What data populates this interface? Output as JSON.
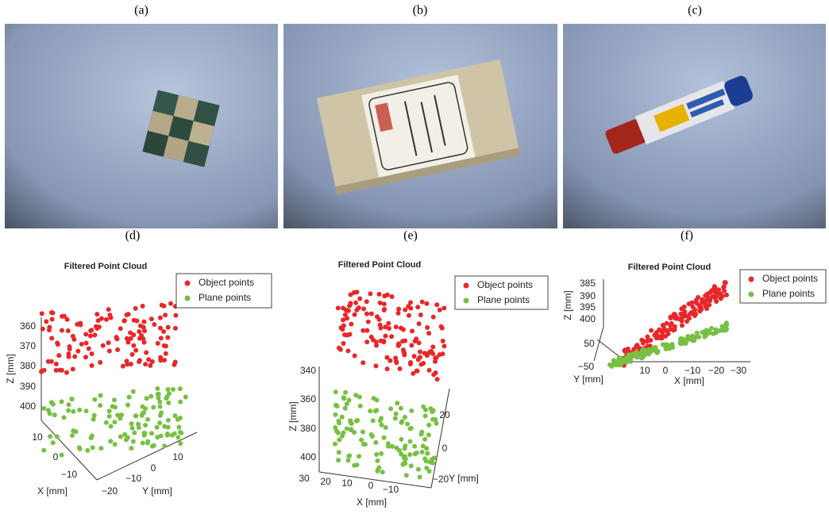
{
  "panels": [
    {
      "label": "(a)"
    },
    {
      "label": "(b)"
    },
    {
      "label": "(c)"
    },
    {
      "label": "(d)",
      "plot": {
        "title": "Filtered Point Cloud",
        "legend": [
          "Object points",
          "Plane points"
        ],
        "z_label": "Z [mm]",
        "z_ticks": [
          "360",
          "370",
          "380",
          "390",
          "400"
        ],
        "x_label": "X [mm]",
        "x_ticks": [
          "10",
          "0",
          "−10"
        ],
        "y_label": "Y [mm]",
        "y_ticks": [
          "10",
          "0",
          "−10",
          "−20"
        ]
      }
    },
    {
      "label": "(e)",
      "plot": {
        "title": "Filtered Point Cloud",
        "legend": [
          "Object points",
          "Plane points"
        ],
        "z_label": "Z [mm]",
        "z_ticks": [
          "340",
          "360",
          "380",
          "400"
        ],
        "x_label": "X [mm]",
        "x_ticks": [
          "30",
          "20",
          "10",
          "0",
          "−10"
        ],
        "y_label": "Y [mm]",
        "y_ticks": [
          "20",
          "0",
          "−20"
        ]
      }
    },
    {
      "label": "(f)",
      "plot": {
        "title": "Filtered Point Cloud",
        "legend": [
          "Object points",
          "Plane points"
        ],
        "z_label": "Z [mm]",
        "z_ticks": [
          "385",
          "390",
          "395",
          "400"
        ],
        "x_label": "X [mm]",
        "x_ticks": [
          "10",
          "0",
          "−10",
          "−20",
          "−30"
        ],
        "y_label": "Y [mm]",
        "y_ticks": [
          "50",
          "−50"
        ]
      }
    }
  ]
}
